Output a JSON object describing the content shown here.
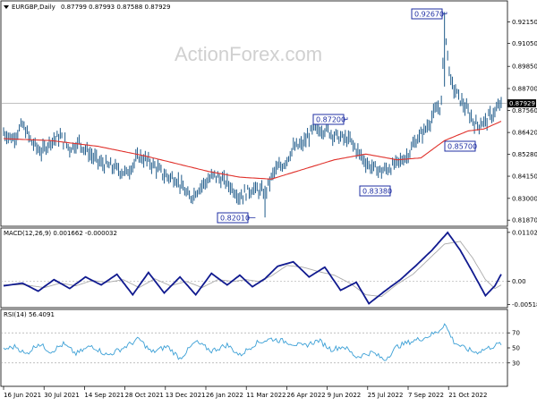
{
  "chart_data": [
    {
      "type": "ohlc",
      "title": "EURGBP,Daily",
      "ohlc_header": "0.87799 0.87993 0.87588 0.87929",
      "watermark": "ActionForex.com",
      "ylim": [
        0.816,
        0.932
      ],
      "ticks": [
        "0.92150",
        "0.91050",
        "0.89850",
        "0.88700",
        "0.87560",
        "0.86420",
        "0.85280",
        "0.84150",
        "0.83000",
        "0.81870"
      ],
      "tick_values": [
        0.9215,
        0.9105,
        0.8985,
        0.887,
        0.8756,
        0.8642,
        0.8528,
        0.8415,
        0.83,
        0.8187
      ],
      "current_price": "0.87929",
      "current_value": 0.87929,
      "annotations": [
        {
          "label": "0.92670",
          "value": 0.9267
        },
        {
          "label": "0.87200",
          "value": 0.872
        },
        {
          "label": "0.85700",
          "value": 0.857
        },
        {
          "label": "0.83380",
          "value": 0.8338
        },
        {
          "label": "0.82010",
          "value": 0.8201
        }
      ],
      "price_keypoints": [
        [
          0,
          0.864
        ],
        [
          6,
          0.861
        ],
        [
          12,
          0.868
        ],
        [
          18,
          0.859
        ],
        [
          24,
          0.854
        ],
        [
          30,
          0.86
        ],
        [
          36,
          0.862
        ],
        [
          42,
          0.856
        ],
        [
          48,
          0.859
        ],
        [
          56,
          0.852
        ],
        [
          62,
          0.848
        ],
        [
          70,
          0.846
        ],
        [
          78,
          0.843
        ],
        [
          86,
          0.852
        ],
        [
          94,
          0.848
        ],
        [
          102,
          0.842
        ],
        [
          110,
          0.84
        ],
        [
          118,
          0.83
        ],
        [
          126,
          0.837
        ],
        [
          134,
          0.842
        ],
        [
          142,
          0.838
        ],
        [
          150,
          0.831
        ],
        [
          158,
          0.835
        ],
        [
          166,
          0.833
        ],
        [
          172,
          0.844
        ],
        [
          178,
          0.848
        ],
        [
          184,
          0.856
        ],
        [
          190,
          0.858
        ],
        [
          196,
          0.865
        ],
        [
          204,
          0.866
        ],
        [
          212,
          0.862
        ],
        [
          220,
          0.86
        ],
        [
          226,
          0.853
        ],
        [
          232,
          0.847
        ],
        [
          240,
          0.844
        ],
        [
          248,
          0.847
        ],
        [
          256,
          0.852
        ],
        [
          262,
          0.86
        ],
        [
          268,
          0.866
        ],
        [
          274,
          0.875
        ],
        [
          278,
          0.879
        ],
        [
          280,
          0.919
        ],
        [
          284,
          0.89
        ],
        [
          288,
          0.884
        ],
        [
          294,
          0.876
        ],
        [
          300,
          0.868
        ],
        [
          306,
          0.87
        ],
        [
          312,
          0.875
        ],
        [
          316,
          0.879
        ]
      ],
      "ma_keypoints": [
        [
          0,
          0.861
        ],
        [
          30,
          0.86
        ],
        [
          60,
          0.857
        ],
        [
          90,
          0.852
        ],
        [
          110,
          0.848
        ],
        [
          130,
          0.844
        ],
        [
          150,
          0.841
        ],
        [
          170,
          0.84
        ],
        [
          190,
          0.845
        ],
        [
          210,
          0.85
        ],
        [
          230,
          0.853
        ],
        [
          250,
          0.85
        ],
        [
          265,
          0.851
        ],
        [
          280,
          0.86
        ],
        [
          295,
          0.865
        ],
        [
          305,
          0.866
        ],
        [
          316,
          0.87
        ]
      ],
      "colors": {
        "candles": "#1f5b8a",
        "ma": "#e0312b",
        "annotation": "#1f2fa3",
        "hline": "#9a9a9a"
      }
    },
    {
      "type": "macd",
      "title": "MACD(12,26,9) 0.001662 -0.000032",
      "ylim": [
        -0.0057,
        0.0118
      ],
      "ticks": [
        "0.011023",
        "0.00",
        "-0.005182"
      ],
      "tick_values": [
        0.011023,
        0.0,
        -0.005182
      ],
      "macd_keypoints": [
        [
          0,
          -0.001
        ],
        [
          12,
          -0.0004
        ],
        [
          22,
          -0.0022
        ],
        [
          32,
          0.0004
        ],
        [
          42,
          -0.0016
        ],
        [
          52,
          0.001
        ],
        [
          62,
          -0.0008
        ],
        [
          72,
          0.0016
        ],
        [
          82,
          -0.003
        ],
        [
          92,
          0.002
        ],
        [
          102,
          -0.0026
        ],
        [
          112,
          0.001
        ],
        [
          122,
          -0.003
        ],
        [
          132,
          0.0018
        ],
        [
          142,
          -0.0008
        ],
        [
          150,
          0.0014
        ],
        [
          158,
          -0.0012
        ],
        [
          166,
          0.0006
        ],
        [
          174,
          0.0034
        ],
        [
          184,
          0.0044
        ],
        [
          194,
          0.001
        ],
        [
          204,
          0.0032
        ],
        [
          214,
          -0.002
        ],
        [
          224,
          -0.0002
        ],
        [
          232,
          -0.005
        ],
        [
          242,
          -0.0022
        ],
        [
          252,
          0.0004
        ],
        [
          262,
          0.0036
        ],
        [
          272,
          0.007
        ],
        [
          282,
          0.011
        ],
        [
          290,
          0.007
        ],
        [
          298,
          0.002
        ],
        [
          306,
          -0.0032
        ],
        [
          312,
          -0.001
        ],
        [
          316,
          0.0016
        ]
      ],
      "signal_keypoints": [
        [
          0,
          -0.0008
        ],
        [
          14,
          -0.0008
        ],
        [
          26,
          -0.0014
        ],
        [
          36,
          -0.0004
        ],
        [
          46,
          -0.001
        ],
        [
          56,
          0.0002
        ],
        [
          66,
          -0.0002
        ],
        [
          76,
          0.0004
        ],
        [
          86,
          -0.0014
        ],
        [
          96,
          0.0006
        ],
        [
          106,
          -0.001
        ],
        [
          116,
          0.0
        ],
        [
          126,
          -0.0014
        ],
        [
          136,
          0.0004
        ],
        [
          146,
          0.0
        ],
        [
          154,
          0.0004
        ],
        [
          162,
          0.0
        ],
        [
          170,
          0.0012
        ],
        [
          180,
          0.0036
        ],
        [
          190,
          0.0032
        ],
        [
          200,
          0.0022
        ],
        [
          210,
          0.0014
        ],
        [
          220,
          -0.0004
        ],
        [
          230,
          -0.003
        ],
        [
          240,
          -0.0034
        ],
        [
          250,
          -0.0006
        ],
        [
          260,
          0.0016
        ],
        [
          270,
          0.005
        ],
        [
          280,
          0.0084
        ],
        [
          290,
          0.009
        ],
        [
          298,
          0.0052
        ],
        [
          306,
          0.0004
        ],
        [
          312,
          -0.0016
        ],
        [
          316,
          -0.0008
        ]
      ],
      "colors": {
        "macd": "#101a8f",
        "signal": "#a9a9a9",
        "zero": "#b0b0b0"
      }
    },
    {
      "type": "rsi",
      "title": "RSI(14) 56.4091",
      "ylim": [
        0,
        100
      ],
      "ticks": [
        "70",
        "50",
        "30"
      ],
      "tick_values": [
        70,
        50,
        30
      ],
      "rsi_keypoints": [
        [
          0,
          48
        ],
        [
          8,
          52
        ],
        [
          14,
          41
        ],
        [
          22,
          56
        ],
        [
          30,
          45
        ],
        [
          38,
          55
        ],
        [
          46,
          42
        ],
        [
          56,
          53
        ],
        [
          66,
          40
        ],
        [
          76,
          50
        ],
        [
          86,
          62
        ],
        [
          94,
          44
        ],
        [
          104,
          52
        ],
        [
          112,
          36
        ],
        [
          122,
          58
        ],
        [
          132,
          46
        ],
        [
          142,
          54
        ],
        [
          150,
          40
        ],
        [
          160,
          56
        ],
        [
          170,
          62
        ],
        [
          180,
          58
        ],
        [
          190,
          52
        ],
        [
          200,
          60
        ],
        [
          208,
          48
        ],
        [
          216,
          52
        ],
        [
          224,
          38
        ],
        [
          234,
          44
        ],
        [
          242,
          34
        ],
        [
          250,
          52
        ],
        [
          258,
          58
        ],
        [
          268,
          64
        ],
        [
          276,
          72
        ],
        [
          280,
          82
        ],
        [
          286,
          58
        ],
        [
          292,
          50
        ],
        [
          300,
          44
        ],
        [
          308,
          50
        ],
        [
          316,
          56
        ]
      ],
      "colors": {
        "rsi": "#3ca0d6",
        "levels": "#9a9a9a"
      }
    }
  ],
  "x_axis": {
    "labels": [
      "16 Jun 2021",
      "30 Jul 2021",
      "14 Sep 2021",
      "28 Oct 2021",
      "13 Dec 2021",
      "26 Jan 2022",
      "11 Mar 2022",
      "26 Apr 2022",
      "9 Jun 2022",
      "25 Jul 2022",
      "7 Sep 2022",
      "21 Oct 2022"
    ]
  }
}
